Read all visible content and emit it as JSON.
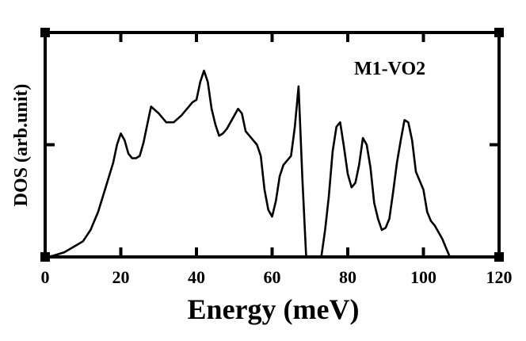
{
  "chart_data": {
    "type": "line",
    "title": "",
    "annotation": "M1-VO2",
    "xlabel": "Energy (meV)",
    "ylabel": "DOS (arb.unit)",
    "xlim": [
      0,
      120
    ],
    "ylim": [
      0,
      1
    ],
    "xticks": [
      0,
      20,
      40,
      60,
      80,
      100,
      120
    ],
    "xtick_labels": [
      "0",
      "20",
      "40",
      "60",
      "80",
      "100",
      "120"
    ],
    "yticks": [
      0.5,
      1.0
    ],
    "grid": false,
    "series": [
      {
        "name": "M1-VO2",
        "x": [
          0,
          2,
          5,
          7,
          10,
          12,
          14,
          16,
          18,
          19,
          20,
          21,
          22,
          23,
          24,
          25,
          26,
          27,
          28,
          30,
          32,
          34,
          36,
          38,
          39,
          40,
          41,
          42,
          43,
          44,
          45,
          46,
          47,
          48,
          49,
          50,
          51,
          52,
          53,
          54,
          55,
          56,
          57,
          58,
          59,
          60,
          61,
          62,
          63,
          64,
          65,
          66,
          67,
          68,
          69,
          70,
          71,
          72,
          73,
          74,
          75,
          76,
          77,
          78,
          79,
          80,
          81,
          82,
          83,
          84,
          85,
          86,
          87,
          88,
          89,
          90,
          91,
          92,
          93,
          94,
          95,
          96,
          97,
          98,
          99,
          100,
          101,
          102,
          103,
          104,
          105,
          106,
          107
        ],
        "y": [
          0.0,
          0.005,
          0.02,
          0.04,
          0.07,
          0.12,
          0.2,
          0.31,
          0.42,
          0.5,
          0.55,
          0.52,
          0.46,
          0.44,
          0.44,
          0.45,
          0.51,
          0.59,
          0.67,
          0.64,
          0.6,
          0.6,
          0.63,
          0.67,
          0.69,
          0.7,
          0.78,
          0.83,
          0.78,
          0.66,
          0.59,
          0.54,
          0.55,
          0.57,
          0.6,
          0.63,
          0.66,
          0.64,
          0.56,
          0.54,
          0.52,
          0.5,
          0.45,
          0.3,
          0.21,
          0.18,
          0.25,
          0.36,
          0.41,
          0.43,
          0.45,
          0.58,
          0.76,
          0.35,
          0.0,
          0.0,
          0.0,
          0.0,
          0.0,
          0.12,
          0.27,
          0.47,
          0.58,
          0.6,
          0.49,
          0.37,
          0.31,
          0.33,
          0.41,
          0.53,
          0.5,
          0.4,
          0.24,
          0.17,
          0.12,
          0.13,
          0.17,
          0.29,
          0.42,
          0.52,
          0.61,
          0.6,
          0.52,
          0.38,
          0.34,
          0.3,
          0.2,
          0.16,
          0.14,
          0.11,
          0.08,
          0.04,
          0.0
        ]
      }
    ]
  }
}
